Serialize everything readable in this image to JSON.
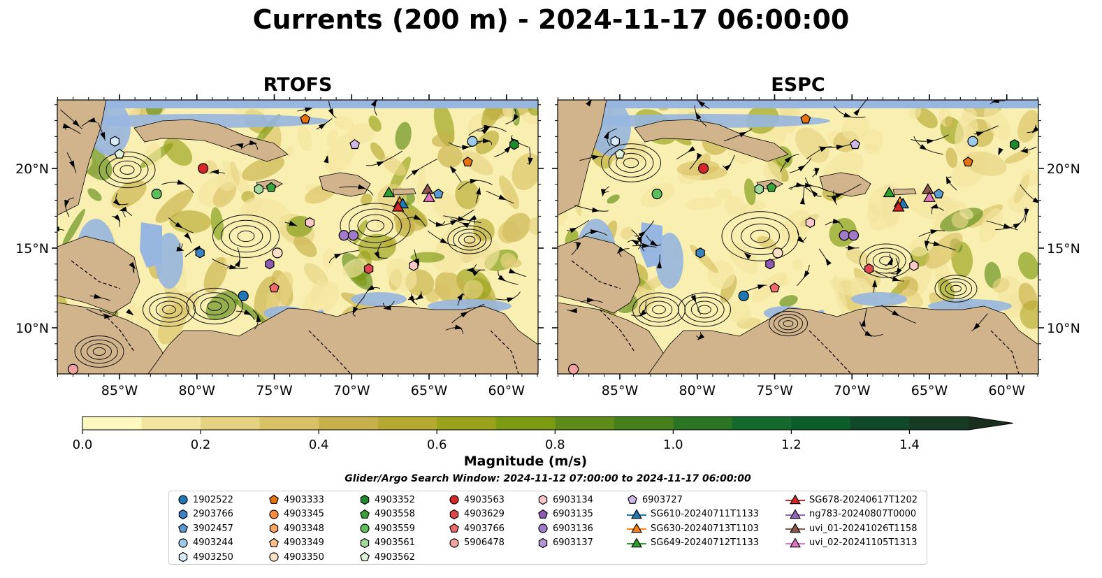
{
  "title": "Currents (200 m) - 2024-11-17 06:00:00",
  "panels": [
    {
      "title": "RTOFS"
    },
    {
      "title": "ESPC"
    }
  ],
  "axes": {
    "x_ticks": [
      "85°W",
      "80°W",
      "75°W",
      "70°W",
      "65°W",
      "60°W"
    ],
    "y_ticks": [
      "20°N",
      "15°N",
      "10°N"
    ]
  },
  "colorbar": {
    "label": "Magnitude (m/s)",
    "ticks": [
      "0.0",
      "0.2",
      "0.4",
      "0.6",
      "0.8",
      "1.0",
      "1.2",
      "1.4"
    ],
    "range": [
      0,
      1.5
    ],
    "colors": [
      "#fdf8c0",
      "#f2e5a0",
      "#e6d382",
      "#d9c165",
      "#c8b04a",
      "#b5a932",
      "#98a21a",
      "#7c9a12",
      "#5f8c18",
      "#45801c",
      "#2b7424",
      "#146a2c",
      "#0c5c2c",
      "#12492a",
      "#173a24",
      "#1a2e1e"
    ]
  },
  "search_window": "Glider/Argo Search Window: 2024-11-12 07:00:00 to 2024-11-17 06:00:00",
  "legend": {
    "columns": [
      [
        {
          "label": "1902522",
          "marker": "circle",
          "color": "#1f77b4"
        },
        {
          "label": "2903766",
          "marker": "hexagon",
          "color": "#3a83c0"
        },
        {
          "label": "3902457",
          "marker": "pentagon",
          "color": "#5a9bd4"
        },
        {
          "label": "4903244",
          "marker": "circle",
          "color": "#9ecae9"
        },
        {
          "label": "4903250",
          "marker": "hexagon",
          "color": "#d6ecf8"
        }
      ],
      [
        {
          "label": "4903333",
          "marker": "pentagon",
          "color": "#e6730f"
        },
        {
          "label": "4903345",
          "marker": "circle",
          "color": "#fd8d3c"
        },
        {
          "label": "4903348",
          "marker": "hexagon",
          "color": "#fda863"
        },
        {
          "label": "4903349",
          "marker": "pentagon",
          "color": "#fdc08c"
        },
        {
          "label": "4903350",
          "marker": "circle",
          "color": "#fde0c5"
        }
      ],
      [
        {
          "label": "4903352",
          "marker": "hexagon",
          "color": "#1d8a2e"
        },
        {
          "label": "4903558",
          "marker": "pentagon",
          "color": "#3aa23a"
        },
        {
          "label": "4903559",
          "marker": "circle",
          "color": "#5bbf5b"
        },
        {
          "label": "4903561",
          "marker": "hexagon",
          "color": "#a1d99b"
        },
        {
          "label": "4903562",
          "marker": "pentagon",
          "color": "#dff2d8"
        }
      ],
      [
        {
          "label": "4903563",
          "marker": "circle",
          "color": "#d62728"
        },
        {
          "label": "4903629",
          "marker": "hexagon",
          "color": "#e0474c"
        },
        {
          "label": "4903766",
          "marker": "pentagon",
          "color": "#ef6a6a"
        },
        {
          "label": "5906478",
          "marker": "circle",
          "color": "#f4a3a3"
        }
      ],
      [
        {
          "label": "6903134",
          "marker": "hexagon",
          "color": "#fcc9c9"
        },
        {
          "label": "6903135",
          "marker": "pentagon",
          "color": "#8c5bb5"
        },
        {
          "label": "6903136",
          "marker": "circle",
          "color": "#a17bc9"
        },
        {
          "label": "6903137",
          "marker": "hexagon",
          "color": "#b395d6"
        }
      ],
      [
        {
          "label": "6903727",
          "marker": "pentagon",
          "color": "#cdb8e6"
        },
        {
          "label": "SG610-20240711T1133",
          "marker": "triangle",
          "color": "#1f77b4"
        },
        {
          "label": "SG630-20240713T1103",
          "marker": "triangle",
          "color": "#ff7f0e"
        },
        {
          "label": "SG649-20240712T1133",
          "marker": "triangle",
          "color": "#2ca02c"
        }
      ],
      [
        {
          "label": "SG678-20240617T1202",
          "marker": "triangle",
          "color": "#d62728"
        },
        {
          "label": "ng783-20240807T0000",
          "marker": "triangle",
          "color": "#9467bd"
        },
        {
          "label": "uvi_01-20241026T1158",
          "marker": "triangle",
          "color": "#8c564b"
        },
        {
          "label": "uvi_02-20241105T1313",
          "marker": "triangle",
          "color": "#e377c2"
        }
      ]
    ]
  }
}
